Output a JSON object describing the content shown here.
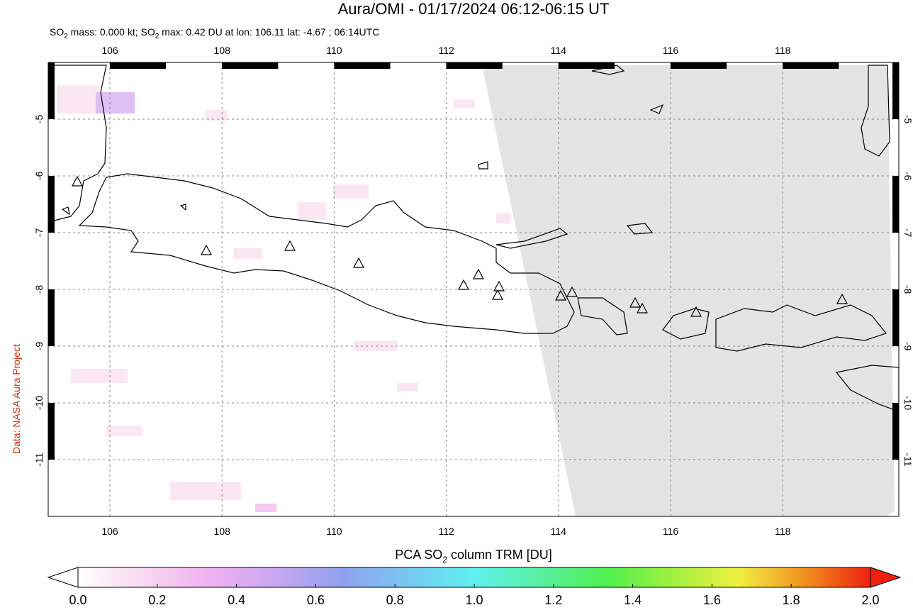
{
  "title": "Aura/OMI - 01/17/2024 06:12-06:15 UT",
  "subtitle_parts": [
    "SO",
    "2",
    " mass: 0.000 kt; SO",
    "2",
    " max: 0.42 DU at lon: 106.11 lat: -4.67 ; 06:14UTC"
  ],
  "credit": "Data: NASA Aura Project",
  "map": {
    "xlim": [
      104.9,
      120.07
    ],
    "ylim": [
      -12,
      -4
    ],
    "xticks": [
      106,
      108,
      110,
      112,
      114,
      116,
      118
    ],
    "yticks": [
      -5,
      -6,
      -7,
      -8,
      -9,
      -10,
      -11
    ]
  },
  "colorbar": {
    "label_parts": [
      "PCA SO",
      "2",
      " column TRM [DU]"
    ],
    "lim": [
      0,
      2
    ],
    "ticks": [
      {
        "value": 0,
        "label": "0.0"
      },
      {
        "value": 0.2,
        "label": "0.2"
      },
      {
        "value": 0.4,
        "label": "0.4"
      },
      {
        "value": 0.6,
        "label": "0.6"
      },
      {
        "value": 0.8,
        "label": "0.8"
      },
      {
        "value": 1,
        "label": "1.0"
      },
      {
        "value": 1.2,
        "label": "1.2"
      },
      {
        "value": 1.4,
        "label": "1.4"
      },
      {
        "value": 1.6,
        "label": "1.6"
      },
      {
        "value": 1.8,
        "label": "1.8"
      },
      {
        "value": 2,
        "label": "2.0"
      }
    ],
    "colors": [
      "#ffffff",
      "#f8d8f0",
      "#f0b0f0",
      "#c8a8f0",
      "#90a0f0",
      "#78c8f0",
      "#60f0f0",
      "#58f0a0",
      "#50f050",
      "#a0f040",
      "#f0f040",
      "#f09020",
      "#f02010"
    ]
  }
}
